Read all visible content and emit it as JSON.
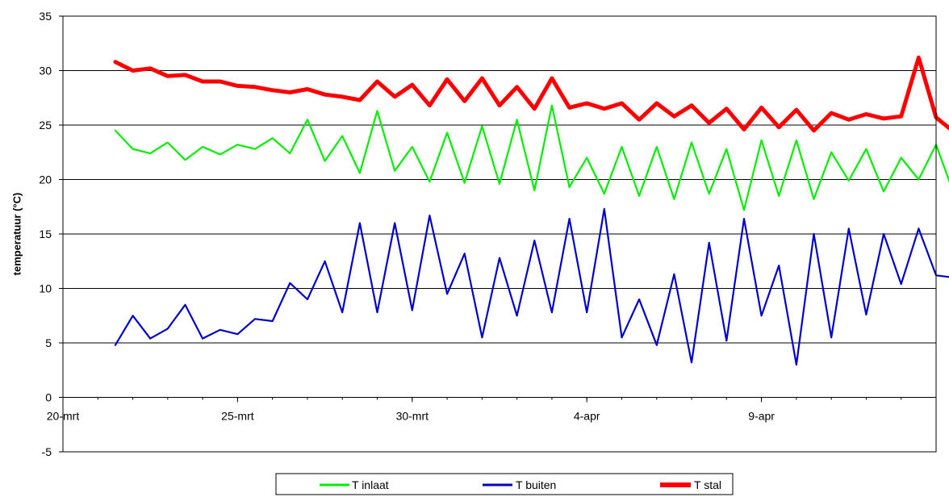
{
  "chart_data": {
    "type": "line",
    "title": "",
    "xlabel": "",
    "ylabel": "temperatuur (°C)",
    "ylim": [
      -5,
      35
    ],
    "yticks": [
      -5,
      0,
      5,
      10,
      15,
      20,
      25,
      30,
      35
    ],
    "ytick_labels": [
      "-5",
      "0",
      "5",
      "10",
      "15",
      "20",
      "25",
      "30",
      "35"
    ],
    "xlim": [
      "2008-03-20",
      "2008-04-14"
    ],
    "xticks": [
      "2008-03-20",
      "2008-03-25",
      "2008-03-30",
      "2008-04-04",
      "2008-04-09"
    ],
    "xtick_labels": [
      "20-mrt",
      "25-mrt",
      "30-mrt",
      "4-apr",
      "9-apr"
    ],
    "grid": "horizontal",
    "legend": "bottom",
    "series": [
      {
        "name": "T inlaat",
        "color": "#00ee00",
        "x": [
          "2008-03-21 12:00",
          "2008-03-22 00:00",
          "2008-03-22 12:00",
          "2008-03-23 00:00",
          "2008-03-23 12:00",
          "2008-03-24 00:00",
          "2008-03-24 12:00",
          "2008-03-25 00:00",
          "2008-03-25 12:00",
          "2008-03-26 00:00",
          "2008-03-26 12:00",
          "2008-03-27 00:00",
          "2008-03-27 12:00",
          "2008-03-28 00:00",
          "2008-03-28 12:00",
          "2008-03-29 00:00",
          "2008-03-29 12:00",
          "2008-03-30 00:00",
          "2008-03-30 12:00",
          "2008-03-31 00:00",
          "2008-03-31 12:00",
          "2008-04-01 00:00",
          "2008-04-01 12:00",
          "2008-04-02 00:00",
          "2008-04-02 12:00",
          "2008-04-03 00:00",
          "2008-04-03 12:00",
          "2008-04-04 00:00",
          "2008-04-04 12:00",
          "2008-04-05 00:00",
          "2008-04-05 12:00",
          "2008-04-06 00:00",
          "2008-04-06 12:00",
          "2008-04-07 00:00",
          "2008-04-07 12:00",
          "2008-04-08 00:00",
          "2008-04-08 12:00",
          "2008-04-09 00:00",
          "2008-04-09 12:00",
          "2008-04-10 00:00",
          "2008-04-10 12:00",
          "2008-04-11 00:00",
          "2008-04-11 12:00",
          "2008-04-12 00:00",
          "2008-04-12 12:00",
          "2008-04-13 00:00",
          "2008-04-13 12:00",
          "2008-04-14 00:00",
          "2008-04-14 12:00"
        ],
        "values": [
          24.5,
          22.8,
          22.4,
          23.4,
          21.8,
          23.0,
          22.3,
          23.2,
          22.8,
          23.8,
          22.4,
          25.5,
          21.7,
          24.0,
          20.6,
          26.3,
          20.8,
          23.0,
          19.8,
          24.3,
          19.7,
          24.9,
          19.6,
          25.5,
          19.0,
          26.8,
          19.3,
          22.0,
          18.7,
          23.0,
          18.5,
          23.0,
          18.2,
          23.4,
          18.7,
          22.8,
          17.2,
          23.6,
          18.5,
          23.6,
          18.2,
          22.5,
          19.9,
          22.8,
          18.9,
          22.0,
          20.0,
          23.2,
          18.8
        ]
      },
      {
        "name": "T buiten",
        "color": "#0000cc",
        "x": [
          "2008-03-21 12:00",
          "2008-03-22 00:00",
          "2008-03-22 12:00",
          "2008-03-23 00:00",
          "2008-03-23 12:00",
          "2008-03-24 00:00",
          "2008-03-24 12:00",
          "2008-03-25 00:00",
          "2008-03-25 12:00",
          "2008-03-26 00:00",
          "2008-03-26 12:00",
          "2008-03-27 00:00",
          "2008-03-27 12:00",
          "2008-03-28 00:00",
          "2008-03-28 12:00",
          "2008-03-29 00:00",
          "2008-03-29 12:00",
          "2008-03-30 00:00",
          "2008-03-30 12:00",
          "2008-03-31 00:00",
          "2008-03-31 12:00",
          "2008-04-01 00:00",
          "2008-04-01 12:00",
          "2008-04-02 00:00",
          "2008-04-02 12:00",
          "2008-04-03 00:00",
          "2008-04-03 12:00",
          "2008-04-04 00:00",
          "2008-04-04 12:00",
          "2008-04-05 00:00",
          "2008-04-05 12:00",
          "2008-04-06 00:00",
          "2008-04-06 12:00",
          "2008-04-07 00:00",
          "2008-04-07 12:00",
          "2008-04-08 00:00",
          "2008-04-08 12:00",
          "2008-04-09 00:00",
          "2008-04-09 12:00",
          "2008-04-10 00:00",
          "2008-04-10 12:00",
          "2008-04-11 00:00",
          "2008-04-11 12:00",
          "2008-04-12 00:00",
          "2008-04-12 12:00",
          "2008-04-13 00:00",
          "2008-04-13 12:00",
          "2008-04-14 00:00",
          "2008-04-14 12:00"
        ],
        "values": [
          4.8,
          7.5,
          5.4,
          6.3,
          8.5,
          5.4,
          6.2,
          5.8,
          7.2,
          7.0,
          10.5,
          9.0,
          12.5,
          7.8,
          16.0,
          7.8,
          16.0,
          8.0,
          16.7,
          9.5,
          13.2,
          5.5,
          12.8,
          7.5,
          14.4,
          7.8,
          16.4,
          7.8,
          17.3,
          5.5,
          9.0,
          4.8,
          11.3,
          3.2,
          14.2,
          5.2,
          16.4,
          7.5,
          12.1,
          3.0,
          15.0,
          5.5,
          15.5,
          7.6,
          15.0,
          10.4,
          15.5,
          11.2,
          11.0
        ]
      },
      {
        "name": "T stal",
        "color": "#ff0000",
        "x": [
          "2008-03-21 12:00",
          "2008-03-22 00:00",
          "2008-03-22 12:00",
          "2008-03-23 00:00",
          "2008-03-23 12:00",
          "2008-03-24 00:00",
          "2008-03-24 12:00",
          "2008-03-25 00:00",
          "2008-03-25 12:00",
          "2008-03-26 00:00",
          "2008-03-26 12:00",
          "2008-03-27 00:00",
          "2008-03-27 12:00",
          "2008-03-28 00:00",
          "2008-03-28 12:00",
          "2008-03-29 00:00",
          "2008-03-29 12:00",
          "2008-03-30 00:00",
          "2008-03-30 12:00",
          "2008-03-31 00:00",
          "2008-03-31 12:00",
          "2008-04-01 00:00",
          "2008-04-01 12:00",
          "2008-04-02 00:00",
          "2008-04-02 12:00",
          "2008-04-03 00:00",
          "2008-04-03 12:00",
          "2008-04-04 00:00",
          "2008-04-04 12:00",
          "2008-04-05 00:00",
          "2008-04-05 12:00",
          "2008-04-06 00:00",
          "2008-04-06 12:00",
          "2008-04-07 00:00",
          "2008-04-07 12:00",
          "2008-04-08 00:00",
          "2008-04-08 12:00",
          "2008-04-09 00:00",
          "2008-04-09 12:00",
          "2008-04-10 00:00",
          "2008-04-10 12:00",
          "2008-04-11 00:00",
          "2008-04-11 12:00",
          "2008-04-12 00:00",
          "2008-04-12 12:00",
          "2008-04-13 00:00",
          "2008-04-13 12:00",
          "2008-04-14 00:00",
          "2008-04-14 12:00"
        ],
        "values": [
          30.8,
          30.0,
          30.2,
          29.5,
          29.6,
          29.0,
          29.0,
          28.6,
          28.5,
          28.2,
          28.0,
          28.3,
          27.8,
          27.6,
          27.3,
          29.0,
          27.6,
          28.7,
          26.8,
          29.2,
          27.2,
          29.3,
          26.8,
          28.5,
          26.5,
          29.3,
          26.6,
          27.0,
          26.5,
          27.0,
          25.5,
          27.0,
          25.8,
          26.8,
          25.2,
          26.5,
          24.6,
          26.6,
          24.8,
          26.4,
          24.5,
          26.1,
          25.5,
          26.0,
          25.6,
          25.8,
          31.2,
          25.7,
          24.4
        ]
      }
    ]
  }
}
